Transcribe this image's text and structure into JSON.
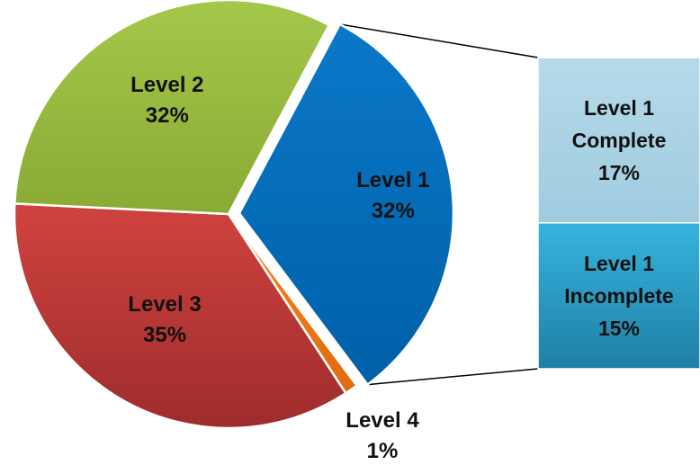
{
  "chart_data": {
    "type": "pie",
    "subtype": "bar-of-pie",
    "slices": [
      {
        "id": "level1",
        "name": "Level 1",
        "value": 32,
        "label": "32%",
        "color": "#0070C0",
        "exploded": true
      },
      {
        "id": "level4",
        "name": "Level 4",
        "value": 1,
        "label": "1%",
        "color": "#F07D18"
      },
      {
        "id": "level3",
        "name": "Level 3",
        "value": 35,
        "label": "35%",
        "color": "#C0393B"
      },
      {
        "id": "level2",
        "name": "Level 2",
        "value": 32,
        "label": "32%",
        "color": "#9BBB3F"
      }
    ],
    "breakdown": {
      "of": "Level 1",
      "items": [
        {
          "id": "complete",
          "lines": [
            "Level 1",
            "Complete"
          ],
          "value": 17,
          "label": "17%",
          "color": "#A8D1E3"
        },
        {
          "id": "incomplete",
          "lines": [
            "Level 1",
            "Incomplete"
          ],
          "value": 15,
          "label": "15%",
          "color": "#2FA5CD"
        }
      ]
    },
    "legend": "none",
    "grid": false
  }
}
